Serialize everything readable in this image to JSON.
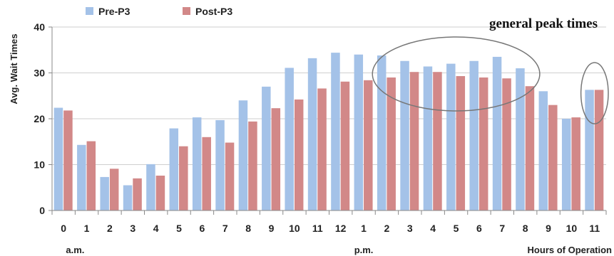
{
  "chart_data": {
    "type": "bar",
    "categories": [
      "0",
      "1",
      "2",
      "3",
      "4",
      "5",
      "6",
      "7",
      "8",
      "9",
      "10",
      "11",
      "12",
      "1",
      "2",
      "3",
      "4",
      "5",
      "6",
      "7",
      "8",
      "9",
      "10",
      "11"
    ],
    "series": [
      {
        "name": "Pre-P3",
        "color": "#a4c2e8",
        "values": [
          22.4,
          14.3,
          7.3,
          5.5,
          10.1,
          17.9,
          20.3,
          19.7,
          24,
          27,
          31.1,
          33.2,
          34.4,
          34,
          33.8,
          32.6,
          31.4,
          32,
          32.6,
          33.5,
          31,
          26,
          20,
          26.3
        ]
      },
      {
        "name": "Post-P3",
        "color": "#d28888",
        "values": [
          21.8,
          15.1,
          9.1,
          7,
          7.6,
          14,
          16,
          14.8,
          19.4,
          22.3,
          24.2,
          26.6,
          28.1,
          28.4,
          29,
          30.2,
          30.2,
          29.3,
          29,
          28.8,
          27.1,
          23,
          20.3,
          26.3
        ]
      }
    ],
    "ylabel": "Avg. Wait Times",
    "xlabel": "Hours of Operation",
    "ylim": [
      0,
      40
    ],
    "yticks": [
      0,
      10,
      20,
      30,
      40
    ],
    "grid": true,
    "legend": "top-left",
    "period_labels": [
      {
        "text": "a.m.",
        "at": 0.5
      },
      {
        "text": "p.m.",
        "at": 13
      }
    ],
    "annotations": [
      {
        "text": "general peak times",
        "from": 14,
        "to": 20
      },
      {
        "text": "",
        "from": 23,
        "to": 23
      }
    ]
  }
}
